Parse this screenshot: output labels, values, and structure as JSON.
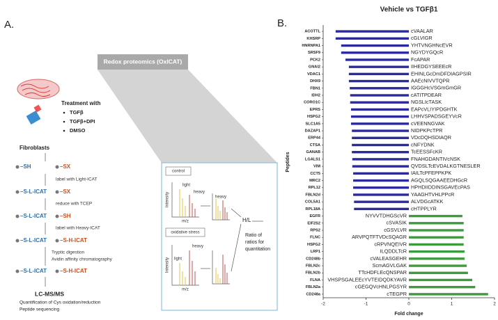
{
  "panel_a": {
    "label": "A.",
    "box_title": "Redox proteomics (OxICAT)",
    "treatment": {
      "heading": "Treatment with",
      "items": [
        "TGFβ",
        "TGFβ+DPI",
        "DMSO"
      ]
    },
    "cell": "Fibroblasts",
    "states": [
      [
        "–SH",
        "–SX"
      ],
      [
        "–S-L-ICAT",
        "–SX"
      ],
      [
        "–S-L-ICAT",
        "–SH"
      ],
      [
        "–S-L-ICAT",
        "–S-H-ICAT"
      ],
      [
        "–S-L-ICAT",
        "–S-H-ICAT"
      ]
    ],
    "steps": [
      [
        "label with Light-ICAT"
      ],
      [
        "reduce with TCEP"
      ],
      [
        "label with Heavy-ICAT"
      ],
      [
        "Tryptic digestion",
        "Avidin affinity chromatography"
      ]
    ],
    "final": {
      "title": "LC-MS/MS",
      "lines": [
        "Quantification of Cys oxidation/reduction",
        "Peptide sequencing"
      ]
    },
    "inset": {
      "control": "control",
      "stress": "oxidative stress",
      "intensity": "Intensity",
      "light": "light",
      "heavy": "heavy",
      "mz": "m/z",
      "ratio": "H/L",
      "ratio_text": [
        "Ratio of",
        "ratios for",
        "quantitation"
      ]
    }
  },
  "chart_data": {
    "type": "barh",
    "panel_label": "B.",
    "title": "Vehicle vs TGFβ1",
    "x_label": "Fold change",
    "y_label": "Peptides",
    "categories": [
      "ACOTTL",
      "KHSRP",
      "HNRNPA1",
      "SRSF9",
      "PCK2",
      "GNAI2",
      "VDAC1",
      "DHX9",
      "FBN1",
      "IDH2",
      "CORO1C",
      "EPRS",
      "HSPG2",
      "SLC1A5",
      "DAZAP1",
      "ERP44",
      "CTSA",
      "GANAB",
      "LGALS1",
      "VIM",
      "CCT5",
      "MRC2",
      "RPL12",
      "FBLN2d",
      "COL5A1",
      "RPL18A",
      "EGFR",
      "EIF2S2",
      "RPS2",
      "FLNC",
      "HSPG2",
      "LRP1",
      "CD248b",
      "FBLN2c",
      "FBLN2b",
      "FLNA",
      "FBLN2a",
      "CD248a"
    ],
    "peptides": [
      "cVAALAR",
      "cGLVIGR",
      "YHTVNGHNcEVR",
      "NGYDYGQcR",
      "FcAPAR",
      "IIHEDGYSEEEcR",
      "EHINLGcDmDFDIAGPSIR",
      "AAEcNIVVTQPR",
      "IGGGHcVSGmGmGR",
      "cATITPDEAR",
      "NGSLIcTASK",
      "EAPcVLIYIPDGHTK",
      "LHHVSPADSGEYVcR",
      "cVEENNGVAK",
      "NIDPKPcTPR",
      "VDcDQHSDIAQR",
      "cNFYDNK",
      "TcEESSFcKR",
      "FNAHGDANTIVcNSK",
      "QVDSLTcEVDALKGTNESLER",
      "IAILTcPFEPPKPK",
      "AGQLSQGAAEEDHGcR",
      "HPHDIIDDINSGAVEcPAS",
      "YAAGHTVHLPPcR",
      "ALVDGcATKK",
      "cHTPPLYR",
      "NYVVTDHGScVR",
      "cSVASIK",
      "cGSVLVR",
      "ARVPQTFTVDcSQAGR",
      "cRPVNQEIVR",
      "ILQDDLTcR",
      "cVALEASGEHR",
      "ScmAGVLGAK",
      "TTcHDFLEcQNSPAR",
      "VHSPSGALEEcYVTEIDQDKYAVR",
      "cGEGQVcHNLPGSYR",
      "cTEGPR"
    ],
    "values": [
      -1.71,
      -1.71,
      -1.58,
      -1.58,
      -1.48,
      -1.4,
      -1.4,
      -1.4,
      -1.38,
      -1.37,
      -1.37,
      -1.35,
      -1.35,
      -1.35,
      -1.33,
      -1.33,
      -1.33,
      -1.33,
      -1.32,
      -1.32,
      -1.3,
      -1.3,
      -1.3,
      -1.3,
      -1.28,
      -1.28,
      1.25,
      1.28,
      1.28,
      1.28,
      1.28,
      1.3,
      1.3,
      1.35,
      1.38,
      1.48,
      1.55,
      1.85
    ],
    "colors": {
      "negative": "#2a2a9c",
      "positive": "#3d9b3d"
    },
    "xlim": [
      -2,
      2
    ],
    "xticks": [
      -2,
      -1,
      0,
      1,
      2
    ]
  }
}
